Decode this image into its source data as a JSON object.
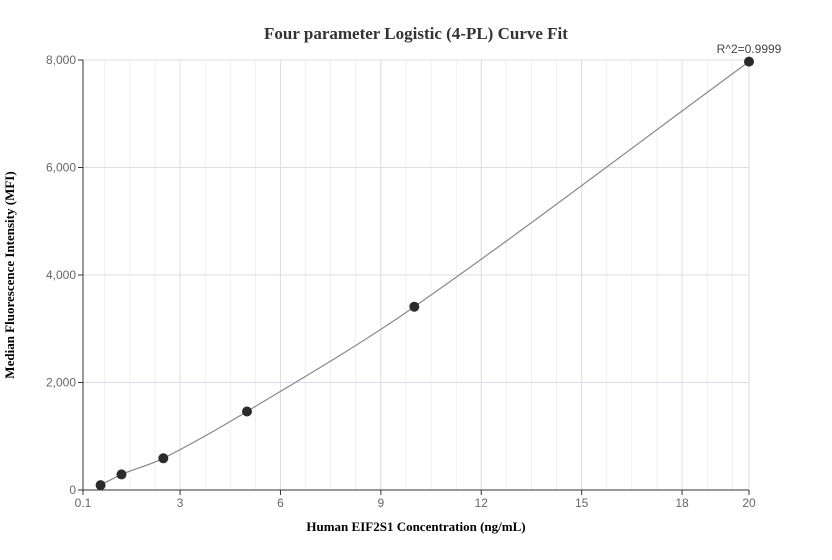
{
  "chart_data": {
    "type": "scatter",
    "title": "Four parameter Logistic (4-PL) Curve Fit",
    "xlabel": "Human EIF2S1 Concentration (ng/mL)",
    "ylabel": "Median Fluorescence Intensity (MFI)",
    "annotation": "R^2=0.9999",
    "xlim": [
      0.1,
      20
    ],
    "ylim": [
      0,
      8000
    ],
    "x_ticks": [
      0.1,
      3,
      6,
      9,
      12,
      15,
      18,
      20
    ],
    "x_tick_labels": [
      "0.1",
      "3",
      "6",
      "9",
      "12",
      "15",
      "18",
      "20"
    ],
    "y_ticks": [
      0,
      2000,
      4000,
      6000,
      8000
    ],
    "y_tick_labels": [
      "0",
      "2,000",
      "4,000",
      "6,000",
      "8,000"
    ],
    "grid": true,
    "series": [
      {
        "points": [
          {
            "x": 0.625,
            "y": 90
          },
          {
            "x": 1.25,
            "y": 290
          },
          {
            "x": 2.5,
            "y": 590
          },
          {
            "x": 5,
            "y": 1460
          },
          {
            "x": 10,
            "y": 3410
          },
          {
            "x": 20,
            "y": 7970
          }
        ]
      }
    ],
    "colors": {
      "marker": "#2b2b2b",
      "curve": "#888888",
      "grid": "#e6e6ee",
      "axis": "#333333"
    }
  }
}
